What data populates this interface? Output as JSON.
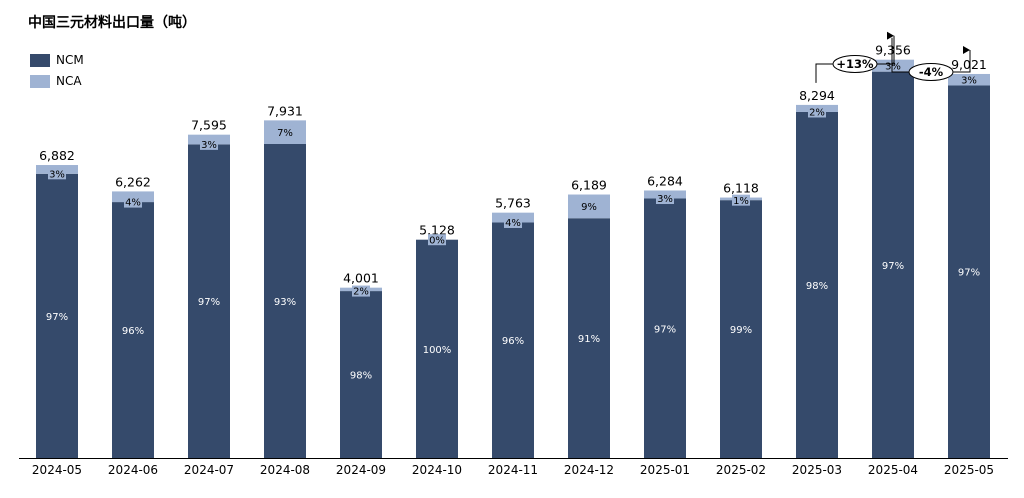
{
  "title": "中国三元材料出口量（吨）",
  "colors": {
    "ncm": "#354a6b",
    "nca": "#9fb3d3"
  },
  "legend": [
    {
      "label": "NCM",
      "color": "#354a6b"
    },
    {
      "label": "NCA",
      "color": "#9fb3d3"
    }
  ],
  "chart_data": {
    "type": "bar",
    "stacked": true,
    "title": "中国三元材料出口量（吨）",
    "categories": [
      "2024-05",
      "2024-06",
      "2024-07",
      "2024-08",
      "2024-09",
      "2024-10",
      "2024-11",
      "2024-12",
      "2025-01",
      "2025-02",
      "2025-03",
      "2025-04",
      "2025-05"
    ],
    "totals": [
      6882,
      6262,
      7595,
      7931,
      4001,
      5128,
      5763,
      6189,
      6284,
      6118,
      8294,
      9356,
      9021
    ],
    "total_labels": [
      "6,882",
      "6,262",
      "7,595",
      "7,931",
      "4,001",
      "5,128",
      "5,763",
      "6,189",
      "6,284",
      "6,118",
      "8,294",
      "9,356",
      "9,021"
    ],
    "series": [
      {
        "name": "NCM",
        "share_labels": [
          "97%",
          "96%",
          "97%",
          "93%",
          "98%",
          "100%",
          "96%",
          "91%",
          "97%",
          "99%",
          "98%",
          "97%",
          "97%"
        ],
        "share": [
          97,
          96,
          97,
          93,
          98,
          100,
          96,
          91,
          97,
          99,
          98,
          97,
          97
        ]
      },
      {
        "name": "NCA",
        "share_labels": [
          "3%",
          "4%",
          "3%",
          "7%",
          "2%",
          "0%",
          "4%",
          "9%",
          "3%",
          "1%",
          "2%",
          "3%",
          "3%"
        ],
        "share": [
          3,
          4,
          3,
          7,
          2,
          0,
          4,
          9,
          3,
          1,
          2,
          3,
          3
        ]
      }
    ],
    "ylim": [
      0,
      10500
    ],
    "legend_position": "top-left",
    "annotations": [
      {
        "from": "2025-03",
        "to": "2025-04",
        "text": "+13%"
      },
      {
        "from": "2025-04",
        "to": "2025-05",
        "text": "-4%"
      }
    ]
  }
}
